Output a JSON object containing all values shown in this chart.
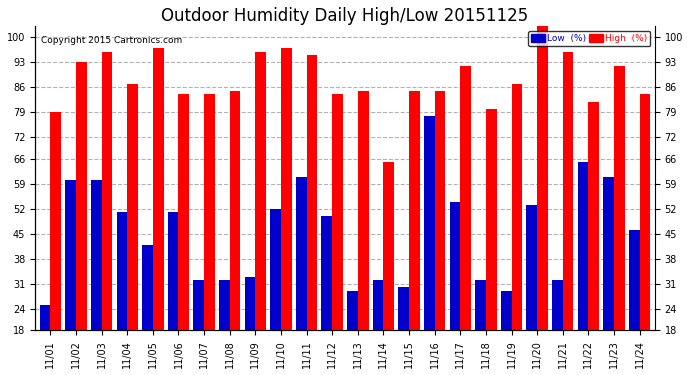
{
  "title": "Outdoor Humidity Daily High/Low 20151125",
  "copyright": "Copyright 2015 Cartronics.com",
  "categories": [
    "11/01",
    "11/02",
    "11/03",
    "11/04",
    "11/05",
    "11/06",
    "11/07",
    "11/08",
    "11/09",
    "11/10",
    "11/11",
    "11/12",
    "11/13",
    "11/14",
    "11/15",
    "11/16",
    "11/17",
    "11/18",
    "11/19",
    "11/20",
    "11/21",
    "11/22",
    "11/23",
    "11/24"
  ],
  "high": [
    79,
    93,
    96,
    87,
    97,
    84,
    84,
    85,
    96,
    97,
    95,
    84,
    85,
    65,
    85,
    85,
    92,
    80,
    87,
    103,
    96,
    82,
    92,
    84
  ],
  "low": [
    25,
    60,
    60,
    51,
    42,
    51,
    32,
    32,
    33,
    52,
    61,
    50,
    29,
    32,
    30,
    78,
    54,
    32,
    29,
    53,
    32,
    65,
    61,
    46
  ],
  "high_color": "#ff0000",
  "low_color": "#0000cc",
  "bg_color": "#ffffff",
  "ylim_min": 18,
  "ylim_max": 103,
  "yticks": [
    18,
    24,
    31,
    38,
    45,
    52,
    59,
    66,
    72,
    79,
    86,
    93,
    100
  ],
  "bar_width": 0.42,
  "legend_low_label": "Low  (%)",
  "legend_high_label": "High  (%)",
  "title_fontsize": 12,
  "tick_fontsize": 7,
  "copyright_fontsize": 6.5
}
